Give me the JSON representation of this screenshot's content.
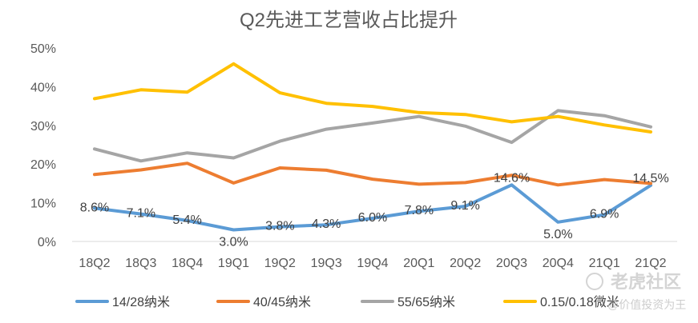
{
  "chart_data": {
    "type": "line",
    "title": "Q2先进工艺营收占比提升",
    "categories": [
      "18Q2",
      "18Q3",
      "18Q4",
      "19Q1",
      "19Q2",
      "19Q3",
      "19Q4",
      "20Q1",
      "20Q2",
      "20Q3",
      "20Q4",
      "21Q1",
      "21Q2"
    ],
    "y_ticks": [
      "0%",
      "10%",
      "20%",
      "30%",
      "40%",
      "50%"
    ],
    "ylim": [
      0,
      50
    ],
    "grid": false,
    "legend_position": "bottom",
    "series": [
      {
        "name": "14/28纳米",
        "color": "#5b9bd5",
        "values": [
          8.6,
          7.1,
          5.4,
          3.0,
          3.8,
          4.3,
          6.0,
          7.8,
          9.1,
          14.6,
          5.0,
          6.9,
          14.5
        ],
        "labels": [
          "8.6%",
          "7.1%",
          "5.4%",
          "3.0%",
          "3.8%",
          "4.3%",
          "6.0%",
          "7.8%",
          "9.1%",
          "14.6%",
          "5.0%",
          "6.9%",
          "14.5%"
        ]
      },
      {
        "name": "40/45纳米",
        "color": "#ed7d31",
        "values": [
          17.3,
          18.5,
          20.2,
          15.1,
          19.0,
          18.4,
          16.1,
          14.8,
          15.2,
          17.1,
          14.6,
          16.0,
          15.0
        ]
      },
      {
        "name": "55/65纳米",
        "color": "#a5a5a5",
        "values": [
          23.9,
          20.8,
          22.9,
          21.6,
          25.9,
          29.0,
          30.6,
          32.3,
          29.8,
          25.6,
          33.8,
          32.5,
          29.6
        ]
      },
      {
        "name": "0.15/0.18微米",
        "color": "#ffc000",
        "values": [
          36.9,
          39.2,
          38.6,
          45.9,
          38.4,
          35.7,
          34.9,
          33.3,
          32.8,
          30.9,
          32.3,
          30.1,
          28.3
        ]
      }
    ]
  },
  "watermark": {
    "brand": "老虎社区",
    "sub": "@价值投资为王"
  }
}
